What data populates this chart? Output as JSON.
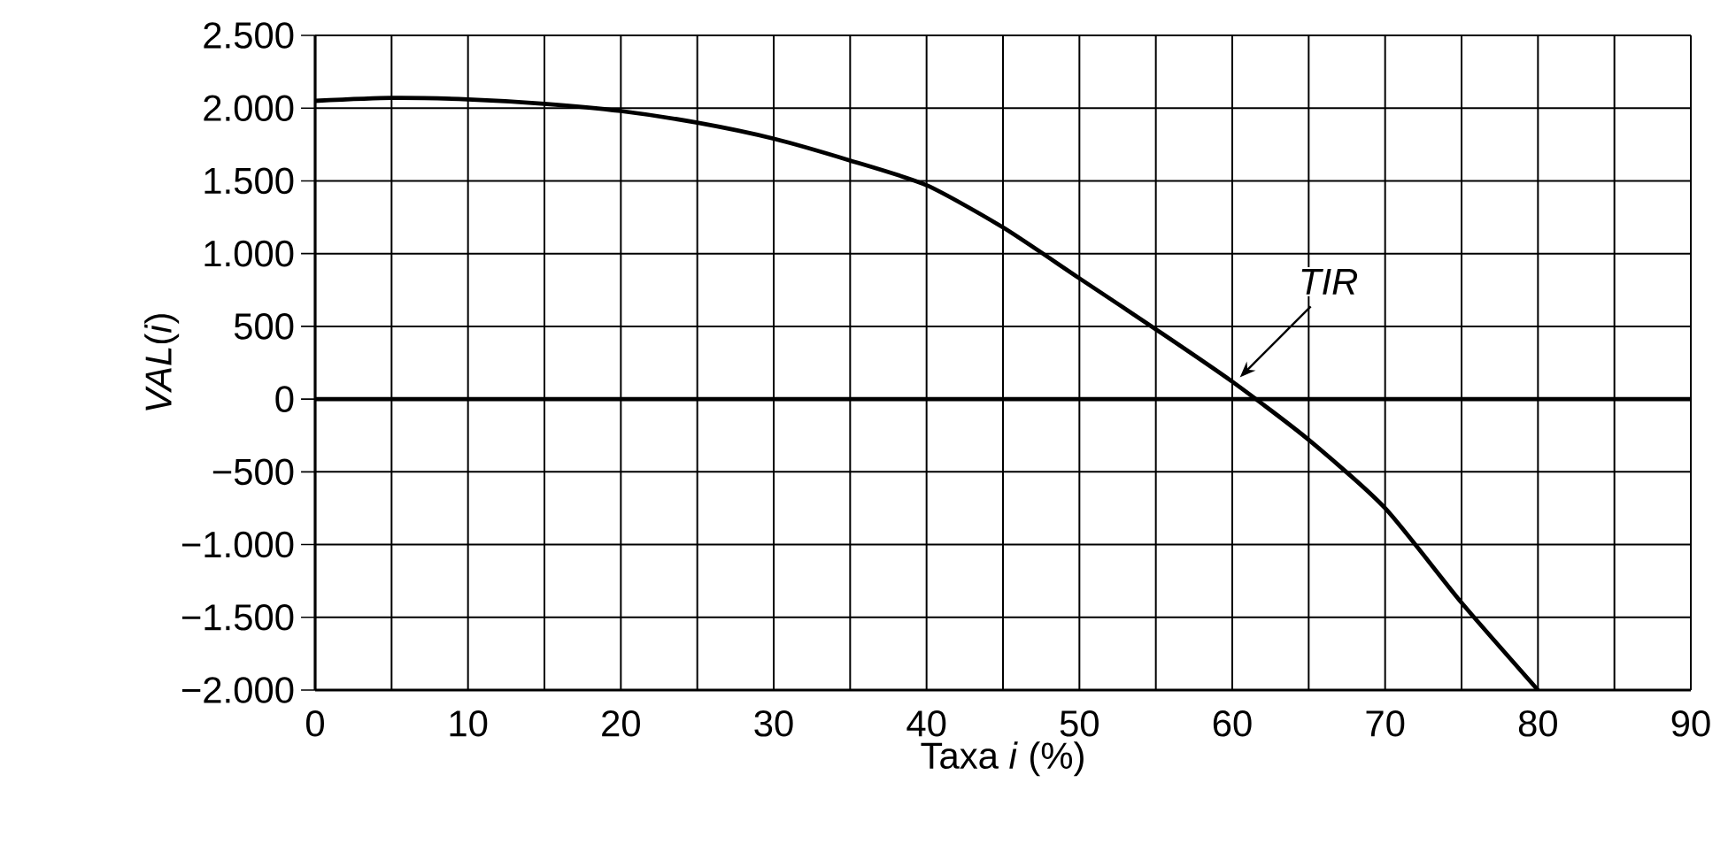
{
  "chart_data": {
    "type": "line",
    "xlabel": "Taxa *i* (%)",
    "ylabel": "*VAL*(*i*)",
    "x": [
      0,
      5,
      10,
      15,
      20,
      25,
      30,
      35,
      40,
      45,
      50,
      55,
      60,
      65,
      70,
      75,
      80
    ],
    "series": [
      {
        "color": "#000000",
        "values": [
          2050,
          2070,
          2060,
          2030,
          1980,
          1900,
          1790,
          1640,
          1470,
          1180,
          830,
          480,
          120,
          -280,
          -750,
          -1400,
          -2000
        ]
      }
    ],
    "xlim": [
      0,
      90
    ],
    "xticks": [
      0,
      {
        "value": 5,
        "label": null
      },
      10,
      {
        "value": 15,
        "label": null
      },
      20,
      {
        "value": 25,
        "label": null
      },
      30,
      {
        "value": 35,
        "label": null
      },
      40,
      {
        "value": 45,
        "label": null
      },
      50,
      {
        "value": 55,
        "label": null
      },
      60,
      {
        "value": 65,
        "label": null
      },
      70,
      {
        "value": 75,
        "label": null
      },
      80,
      {
        "value": 85,
        "label": null
      },
      90
    ],
    "ylim": [
      -2000,
      2500
    ],
    "yticks": [
      {
        "value": -2000,
        "label": "−2.000"
      },
      {
        "value": -1500,
        "label": "−1.500"
      },
      {
        "value": -1000,
        "label": "−1.000"
      },
      {
        "value": -500,
        "label": "−500"
      },
      0,
      500,
      {
        "value": 1000,
        "label": "1.000"
      },
      {
        "value": 1500,
        "label": "1.500"
      },
      {
        "value": 2000,
        "label": "2.000"
      },
      {
        "value": 2500,
        "label": "2.500"
      }
    ],
    "grid": true,
    "ref_lines": [
      {
        "axis": "y",
        "value": 0,
        "color": "#000000"
      }
    ],
    "annotations": [
      {
        "text": "TIR",
        "x": 60.5,
        "y": 150
      }
    ]
  }
}
